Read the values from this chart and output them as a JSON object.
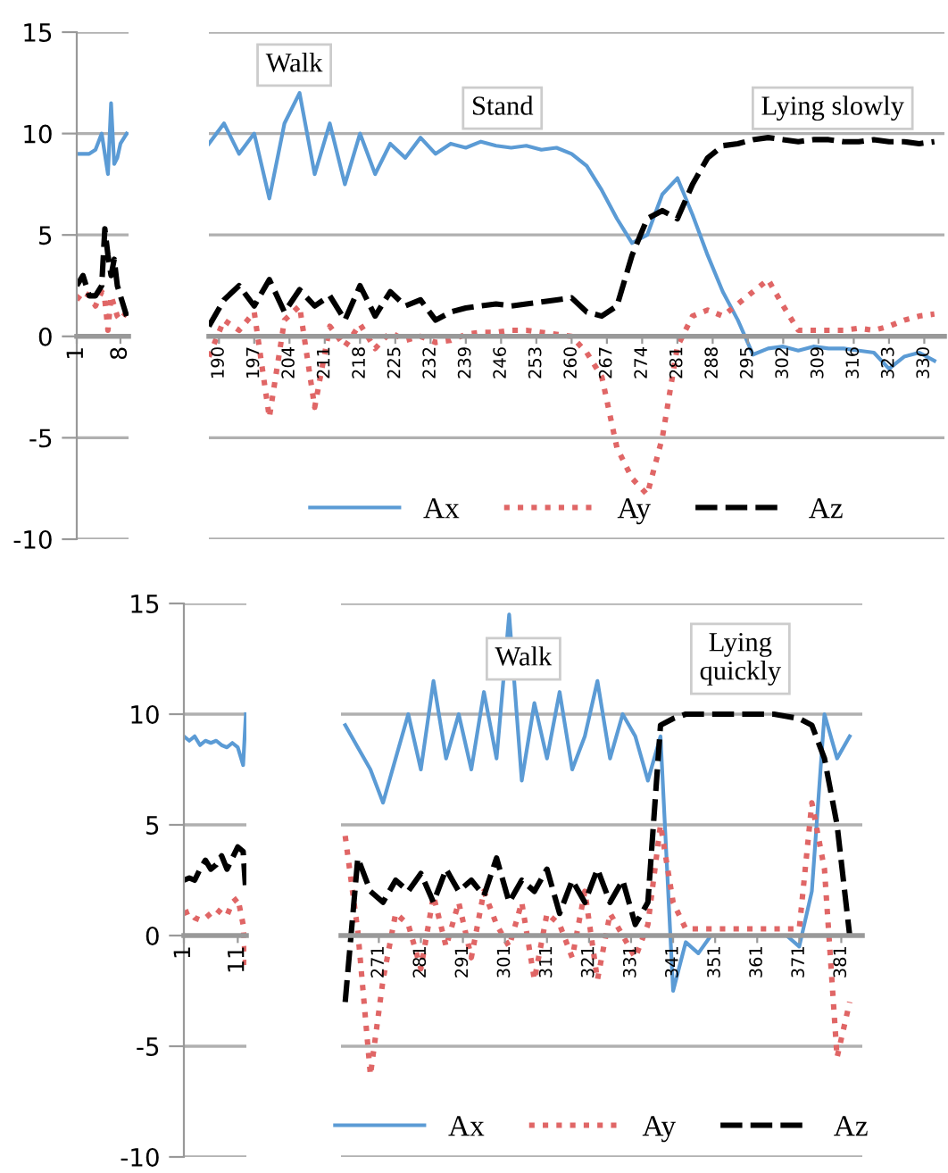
{
  "chart_data": [
    {
      "type": "line",
      "x": [
        1,
        2,
        3,
        4,
        5,
        5.5,
        6,
        6.5,
        7,
        7.5,
        8,
        9
      ],
      "xlim": [
        1,
        9.3
      ],
      "xticks": [
        1,
        8
      ],
      "ylim": [
        -10,
        15
      ],
      "yticks": [
        -10,
        -5,
        0,
        5,
        10,
        15
      ],
      "grid": "y",
      "marker": "none",
      "legend": false,
      "series": [
        {
          "color": "#5b9bd5",
          "line_style": "solid",
          "values": [
            9,
            9,
            9,
            9.2,
            10,
            9,
            8,
            11.5,
            8.5,
            8.8,
            9.5,
            10
          ]
        },
        {
          "color": "#e06666",
          "line_style": "dotted",
          "values": [
            1.8,
            2.2,
            2,
            1.5,
            2.2,
            1.8,
            0.3,
            2,
            1.5,
            1,
            0.8,
            1.2
          ]
        },
        {
          "color": "#000000",
          "line_style": "dashed",
          "values": [
            2.5,
            3,
            2,
            2,
            2.5,
            5.3,
            4,
            3,
            3.8,
            2.5,
            2,
            1
          ]
        }
      ]
    },
    {
      "type": "line",
      "x": [
        188,
        191,
        194,
        197,
        200,
        203,
        206,
        209,
        212,
        215,
        218,
        221,
        224,
        227,
        230,
        233,
        236,
        239,
        242,
        245,
        248,
        251,
        254,
        257,
        260,
        263,
        266,
        269,
        272,
        275,
        278,
        281,
        284,
        287,
        290,
        293,
        296,
        299,
        302,
        305,
        308,
        311,
        314,
        317,
        320,
        323,
        326,
        329,
        332
      ],
      "xlim": [
        188,
        334
      ],
      "xticks": [
        190,
        197,
        204,
        211,
        218,
        225,
        232,
        239,
        246,
        253,
        260,
        267,
        274,
        281,
        288,
        295,
        302,
        309,
        316,
        323,
        330
      ],
      "ylim": [
        -10,
        15
      ],
      "yticks": [
        -10,
        -5,
        0,
        5,
        10,
        15
      ],
      "tick_labels": "x",
      "grid": "y",
      "marker": "none",
      "legend": "bottom",
      "annotations": [
        "Walk",
        "Stand",
        "Lying slowly"
      ],
      "series": [
        {
          "name": "Ax",
          "color": "#5b9bd5",
          "line_style": "solid",
          "values": [
            9.5,
            10.5,
            9,
            10,
            6.8,
            10.5,
            12,
            8,
            10.5,
            7.5,
            10,
            8,
            9.5,
            8.8,
            9.8,
            9,
            9.5,
            9.3,
            9.6,
            9.4,
            9.3,
            9.4,
            9.2,
            9.3,
            9.0,
            8.4,
            7.2,
            5.8,
            4.6,
            5.0,
            7.0,
            7.8,
            6.0,
            4.0,
            2.2,
            0.8,
            -0.9,
            -0.6,
            -0.5,
            -0.7,
            -0.5,
            -0.6,
            -0.6,
            -0.7,
            -0.8,
            -1.6,
            -1.0,
            -0.8,
            -1.2
          ]
        },
        {
          "name": "Ay",
          "color": "#e06666",
          "line_style": "dotted",
          "values": [
            -1,
            0.8,
            0.3,
            1.2,
            -4,
            0.8,
            1.5,
            -3.5,
            0.5,
            -0.5,
            0.6,
            -0.6,
            0.2,
            -0.2,
            0.0,
            -0.3,
            -0.2,
            0.1,
            0.2,
            0.2,
            0.3,
            0.3,
            0.2,
            0.1,
            0.0,
            -0.8,
            -2.0,
            -5.5,
            -7.0,
            -7.8,
            -5.0,
            -0.5,
            1.0,
            1.3,
            1.0,
            1.6,
            2.2,
            2.8,
            1.5,
            0.3,
            0.3,
            0.3,
            0.3,
            0.4,
            0.3,
            0.5,
            0.8,
            1.0,
            1.1
          ]
        },
        {
          "name": "Az",
          "color": "#000000",
          "line_style": "dashed",
          "values": [
            0.5,
            1.8,
            2.5,
            1.5,
            2.8,
            1.2,
            2.3,
            1.5,
            2.0,
            0.8,
            2.5,
            1.0,
            2.2,
            1.5,
            1.8,
            0.8,
            1.2,
            1.4,
            1.5,
            1.6,
            1.5,
            1.6,
            1.7,
            1.8,
            1.9,
            1.2,
            1.0,
            1.5,
            4.0,
            5.8,
            6.2,
            5.8,
            7.5,
            8.8,
            9.4,
            9.5,
            9.7,
            9.8,
            9.7,
            9.6,
            9.7,
            9.7,
            9.6,
            9.6,
            9.7,
            9.6,
            9.6,
            9.5,
            9.6
          ]
        }
      ]
    },
    {
      "type": "line",
      "x": [
        1,
        2,
        3,
        4,
        5,
        6,
        7,
        8,
        9,
        10,
        11,
        12,
        12.5
      ],
      "xlim": [
        1,
        12.6
      ],
      "xticks": [
        1,
        11
      ],
      "ylim": [
        -10,
        15
      ],
      "yticks": [
        -10,
        -5,
        0,
        5,
        10,
        15
      ],
      "grid": "y",
      "marker": "none",
      "legend": false,
      "series": [
        {
          "color": "#5b9bd5",
          "line_style": "solid",
          "values": [
            9,
            8.8,
            9,
            8.6,
            8.8,
            8.7,
            8.8,
            8.6,
            8.5,
            8.7,
            8.5,
            7.7,
            10
          ]
        },
        {
          "color": "#e06666",
          "line_style": "dotted",
          "values": [
            1,
            1.1,
            0.8,
            0.7,
            0.8,
            1,
            1.2,
            1,
            0.9,
            1.5,
            1.7,
            0.5,
            -1.5
          ]
        },
        {
          "color": "#000000",
          "line_style": "dashed",
          "values": [
            2.5,
            2.6,
            2.5,
            3,
            3.4,
            3,
            3.2,
            3.6,
            3,
            3.5,
            4,
            3.8,
            2
          ]
        }
      ]
    },
    {
      "type": "line",
      "x": [
        263,
        266,
        269,
        272,
        275,
        278,
        281,
        284,
        287,
        290,
        293,
        296,
        299,
        302,
        305,
        308,
        311,
        314,
        317,
        320,
        323,
        326,
        329,
        332,
        335,
        338,
        341,
        344,
        347,
        350,
        353,
        356,
        359,
        362,
        365,
        368,
        371,
        374,
        377,
        380,
        383
      ],
      "xlim": [
        262,
        386
      ],
      "xticks": [
        271,
        281,
        291,
        301,
        311,
        321,
        331,
        341,
        351,
        361,
        371,
        381
      ],
      "ylim": [
        -10,
        15
      ],
      "yticks": [
        -10,
        -5,
        0,
        5,
        10,
        15
      ],
      "tick_labels": "x",
      "grid": "y",
      "marker": "none",
      "legend": "bottom",
      "annotations": [
        "Walk",
        "Lying\nquickly"
      ],
      "series": [
        {
          "name": "Ax",
          "color": "#5b9bd5",
          "line_style": "solid",
          "values": [
            9.5,
            8.5,
            7.5,
            6,
            8,
            10,
            7.5,
            11.5,
            8,
            10,
            7.5,
            11,
            8,
            14.5,
            7,
            10.5,
            8,
            11,
            7.5,
            9,
            11.5,
            8,
            10,
            9,
            7,
            9,
            -2.5,
            -0.3,
            -0.8,
            0,
            0,
            0,
            0,
            0,
            0,
            0,
            -0.5,
            2,
            10,
            8,
            9
          ]
        },
        {
          "name": "Ay",
          "color": "#e06666",
          "line_style": "dotted",
          "values": [
            4.5,
            0.2,
            -6.3,
            -2,
            1,
            0.5,
            -1.5,
            1.8,
            -0.5,
            1.5,
            -1,
            2,
            0.5,
            -0.5,
            1.5,
            -2,
            1,
            0.5,
            -1,
            2,
            -2,
            1,
            0,
            -1,
            0.5,
            5,
            1.5,
            0.3,
            0.3,
            0.3,
            0.3,
            0.3,
            0.3,
            0.3,
            0.3,
            0.3,
            0.3,
            6,
            3,
            -5.5,
            -3
          ]
        },
        {
          "name": "Az",
          "color": "#000000",
          "line_style": "dashed",
          "values": [
            -3,
            3.5,
            2,
            1.5,
            2.5,
            2,
            2.8,
            1.5,
            3,
            2,
            2.5,
            1.8,
            3.5,
            1.5,
            2.5,
            2,
            3,
            1,
            2.5,
            1.5,
            3,
            1.5,
            2.5,
            0.5,
            1.5,
            9.5,
            9.8,
            10,
            10,
            10,
            10,
            10,
            10,
            10,
            10,
            9.9,
            9.8,
            9.5,
            8,
            5,
            0
          ]
        }
      ]
    }
  ]
}
